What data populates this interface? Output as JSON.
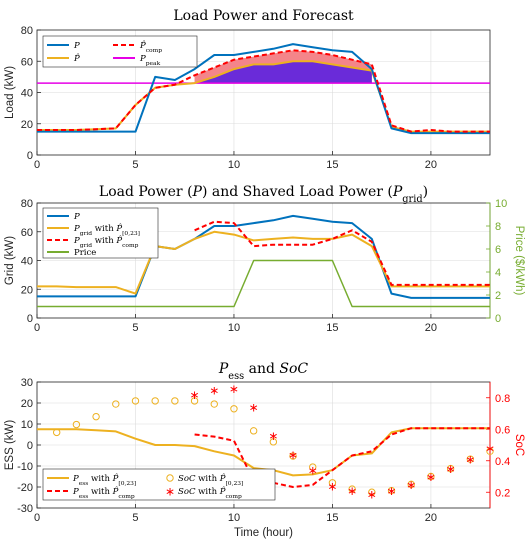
{
  "chart_data": [
    {
      "type": "line",
      "title": "Load Power and Forecast",
      "ylabel": "Load (kW)",
      "xlim": [
        0,
        23
      ],
      "ylim": [
        0,
        80
      ],
      "xticks": [
        "0",
        "5",
        "10",
        "15",
        "20"
      ],
      "yticks": [
        "0",
        "20",
        "40",
        "60",
        "80"
      ],
      "grid": true,
      "legend_position": "top-left",
      "series": [
        {
          "name": "P",
          "color": "#0072BD",
          "style": "solid",
          "x": [
            0,
            1,
            2,
            3,
            4,
            5,
            6,
            7,
            8,
            9,
            10,
            11,
            12,
            13,
            14,
            15,
            16,
            17,
            18,
            19,
            20,
            21,
            22,
            23
          ],
          "y": [
            15,
            15,
            15,
            15,
            15,
            15,
            50,
            48,
            55,
            64,
            64,
            66,
            68,
            71,
            69,
            67,
            66,
            55,
            17,
            14,
            14,
            14,
            14,
            14
          ]
        },
        {
          "name": "P̂",
          "color": "#EDB120",
          "style": "solid",
          "x": [
            0,
            1,
            2,
            3,
            4,
            5,
            6,
            7,
            8,
            9,
            10,
            11,
            12,
            13,
            14,
            15,
            16,
            17,
            18,
            19,
            20,
            21,
            22,
            23
          ],
          "y": [
            16,
            16,
            16,
            16.5,
            17,
            32,
            43,
            45,
            46,
            50,
            55,
            58,
            58,
            60,
            60,
            58,
            56,
            54,
            18,
            15,
            15,
            15,
            15,
            15
          ]
        },
        {
          "name": "P̂comp",
          "color": "#FF0000",
          "style": "dashed",
          "x": [
            0,
            1,
            2,
            3,
            4,
            5,
            6,
            7,
            8,
            9,
            10,
            11,
            12,
            13,
            14,
            15,
            16,
            17,
            18,
            19,
            20,
            21,
            22,
            23
          ],
          "y": [
            16,
            16,
            16,
            16.5,
            17,
            32,
            43,
            45,
            51,
            56,
            61,
            63,
            65,
            67,
            66,
            64,
            61,
            58,
            19,
            15,
            16,
            15,
            15,
            15
          ]
        },
        {
          "name": "Ppeak",
          "color": "#E600E6",
          "style": "solid",
          "x": [
            0,
            23
          ],
          "y": [
            46,
            46
          ]
        }
      ]
    },
    {
      "type": "line",
      "title": "Load Power (P) and Shaved Load Power (Pgrid)",
      "ylabel": "Grid (kW)",
      "ylabel_right": "Price ($/kWh)",
      "xlim": [
        0,
        23
      ],
      "ylim": [
        0,
        80
      ],
      "ylim_right": [
        0,
        10
      ],
      "xticks": [
        "0",
        "5",
        "10",
        "15",
        "20"
      ],
      "yticks": [
        "0",
        "20",
        "40",
        "60",
        "80"
      ],
      "yticks_right": [
        "0",
        "2",
        "4",
        "6",
        "8",
        "10"
      ],
      "grid": true,
      "legend_position": "top-left",
      "series": [
        {
          "name": "P",
          "color": "#0072BD",
          "style": "solid",
          "axis": "left",
          "x": [
            0,
            1,
            2,
            3,
            4,
            5,
            6,
            7,
            8,
            9,
            10,
            11,
            12,
            13,
            14,
            15,
            16,
            17,
            18,
            19,
            20,
            21,
            22,
            23
          ],
          "y": [
            15,
            15,
            15,
            15,
            15,
            15,
            50,
            48,
            55,
            64,
            64,
            66,
            68,
            71,
            69,
            67,
            66,
            55,
            17,
            14,
            14,
            14,
            14,
            14
          ]
        },
        {
          "name": "Pgrid with P̂[0,23]",
          "color": "#EDB120",
          "style": "solid",
          "axis": "left",
          "x": [
            0,
            1,
            2,
            3,
            4,
            5,
            6,
            7,
            8,
            9,
            10,
            11,
            12,
            13,
            14,
            15,
            16,
            17,
            18,
            19,
            20,
            21,
            22,
            23
          ],
          "y": [
            22,
            22,
            21.5,
            21.5,
            21.5,
            17,
            50,
            48,
            55,
            60,
            58,
            54,
            55,
            56,
            55,
            55,
            58,
            50,
            22,
            22,
            22,
            22,
            22,
            22
          ]
        },
        {
          "name": "Pgrid with P̂comp",
          "color": "#FF0000",
          "style": "dashed",
          "axis": "left",
          "x": [
            8,
            9,
            10,
            11,
            12,
            13,
            14,
            15,
            16,
            17,
            18,
            19,
            20,
            21,
            22,
            23
          ],
          "y": [
            61,
            67,
            66,
            50,
            51,
            51,
            51,
            55,
            61,
            53,
            23,
            23,
            23,
            23,
            23,
            23
          ]
        },
        {
          "name": "Price",
          "color": "#77AC30",
          "style": "solid",
          "axis": "right",
          "x": [
            0,
            10,
            11,
            15,
            16,
            23
          ],
          "y": [
            1,
            1,
            5,
            5,
            1,
            1
          ]
        }
      ]
    },
    {
      "type": "line",
      "title": "Pess and SoC",
      "xlabel": "Time (hour)",
      "ylabel": "ESS (kW)",
      "ylabel_right": "SoC",
      "xlim": [
        0,
        23
      ],
      "ylim": [
        -30,
        30
      ],
      "ylim_right": [
        0.1,
        0.9
      ],
      "xticks": [
        "0",
        "5",
        "10",
        "15",
        "20"
      ],
      "yticks": [
        "-30",
        "-20",
        "-10",
        "0",
        "10",
        "20",
        "30"
      ],
      "yticks_right": [
        "0.2",
        "0.4",
        "0.6",
        "0.8"
      ],
      "grid": true,
      "legend_position": "bottom-left",
      "series": [
        {
          "name": "Pess with P̂[0,23]",
          "color": "#EDB120",
          "style": "solid",
          "axis": "left",
          "x": [
            0,
            1,
            2,
            3,
            4,
            5,
            6,
            7,
            8,
            9,
            10,
            11,
            12,
            13,
            14,
            15,
            16,
            17,
            18,
            19,
            20,
            21,
            22,
            23
          ],
          "y": [
            7.5,
            7.5,
            7.5,
            7,
            6.5,
            3,
            0,
            0,
            -0.5,
            -3,
            -5,
            -11,
            -12,
            -14.5,
            -14,
            -12,
            -5,
            -4,
            6,
            8,
            8,
            8,
            8,
            8
          ]
        },
        {
          "name": "Pess with P̂comp",
          "color": "#FF0000",
          "style": "dashed",
          "axis": "left",
          "x": [
            8,
            9,
            10,
            11,
            12,
            13,
            14,
            15,
            16,
            17,
            18,
            19,
            20,
            21,
            22,
            23
          ],
          "y": [
            5,
            4,
            2,
            -17,
            -18,
            -20,
            -19,
            -12,
            -5,
            -3,
            5,
            8,
            8,
            8,
            8,
            8
          ]
        },
        {
          "name": "SoC with P̂[0,23]",
          "color": "#EDB120",
          "style": "circle",
          "axis": "right",
          "x": [
            1,
            2,
            3,
            4,
            5,
            6,
            7,
            8,
            9,
            10,
            11,
            12,
            13,
            14,
            15,
            16,
            17,
            18,
            19,
            20,
            21,
            22,
            23
          ],
          "y": [
            0.58,
            0.63,
            0.68,
            0.76,
            0.78,
            0.78,
            0.78,
            0.78,
            0.76,
            0.73,
            0.59,
            0.52,
            0.43,
            0.36,
            0.26,
            0.22,
            0.2,
            0.21,
            0.25,
            0.3,
            0.35,
            0.41,
            0.46
          ]
        },
        {
          "name": "SoC with P̂comp",
          "color": "#FF0000",
          "style": "star",
          "axis": "right",
          "x": [
            8,
            9,
            10,
            11,
            12,
            13,
            14,
            15,
            16,
            17,
            18,
            19,
            20,
            21,
            22,
            23
          ],
          "y": [
            0.82,
            0.85,
            0.86,
            0.74,
            0.56,
            0.44,
            0.34,
            0.24,
            0.21,
            0.19,
            0.21,
            0.25,
            0.3,
            0.35,
            0.41,
            0.48
          ]
        }
      ]
    }
  ]
}
